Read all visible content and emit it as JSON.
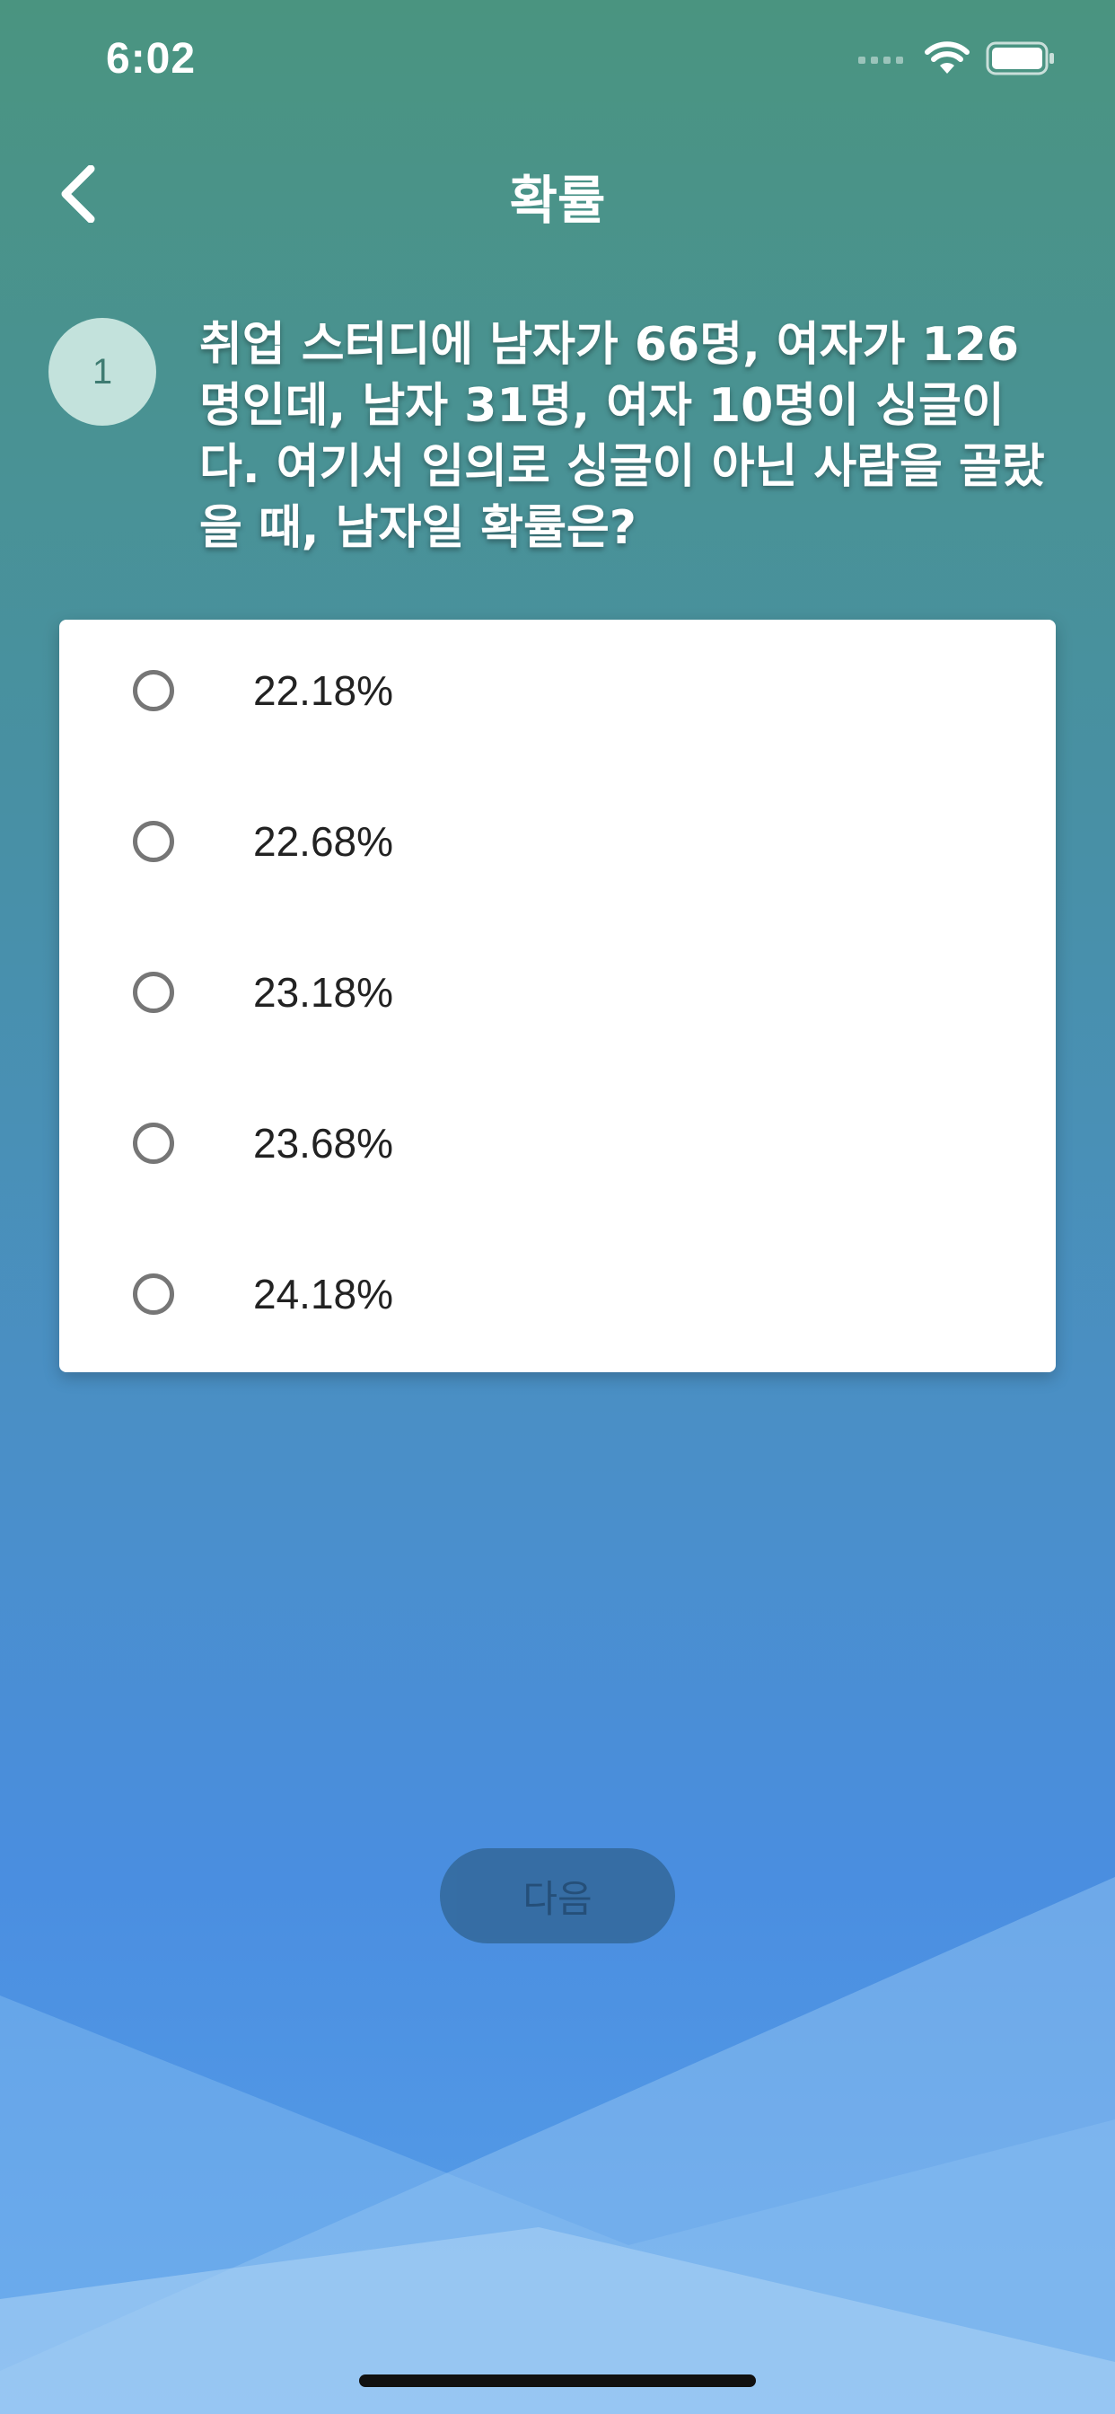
{
  "status_bar": {
    "time": "6:02",
    "icons": [
      "signal-icon",
      "wifi-icon",
      "battery-icon"
    ]
  },
  "nav": {
    "back_icon": "chevron-left-icon",
    "title": "확률"
  },
  "question": {
    "number": "1",
    "text": "취업 스터디에 남자가 66명, 여자가 126명인데, 남자 31명, 여자 10명이 싱글이다. 여기서 임의로 싱글이 아닌 사람을 골랐을 때, 남자일 확률은?"
  },
  "options": [
    {
      "label": "22.18%",
      "selected": false
    },
    {
      "label": "22.68%",
      "selected": false
    },
    {
      "label": "23.18%",
      "selected": false
    },
    {
      "label": "23.68%",
      "selected": false
    },
    {
      "label": "24.18%",
      "selected": false
    }
  ],
  "next_button": {
    "label": "다음",
    "enabled": false
  },
  "colors": {
    "gradient_top": "#4a9480",
    "gradient_bottom": "#58a0ea",
    "number_badge_bg": "#c3e2dc",
    "card_bg": "#ffffff",
    "next_button_bg": "#33689a"
  }
}
